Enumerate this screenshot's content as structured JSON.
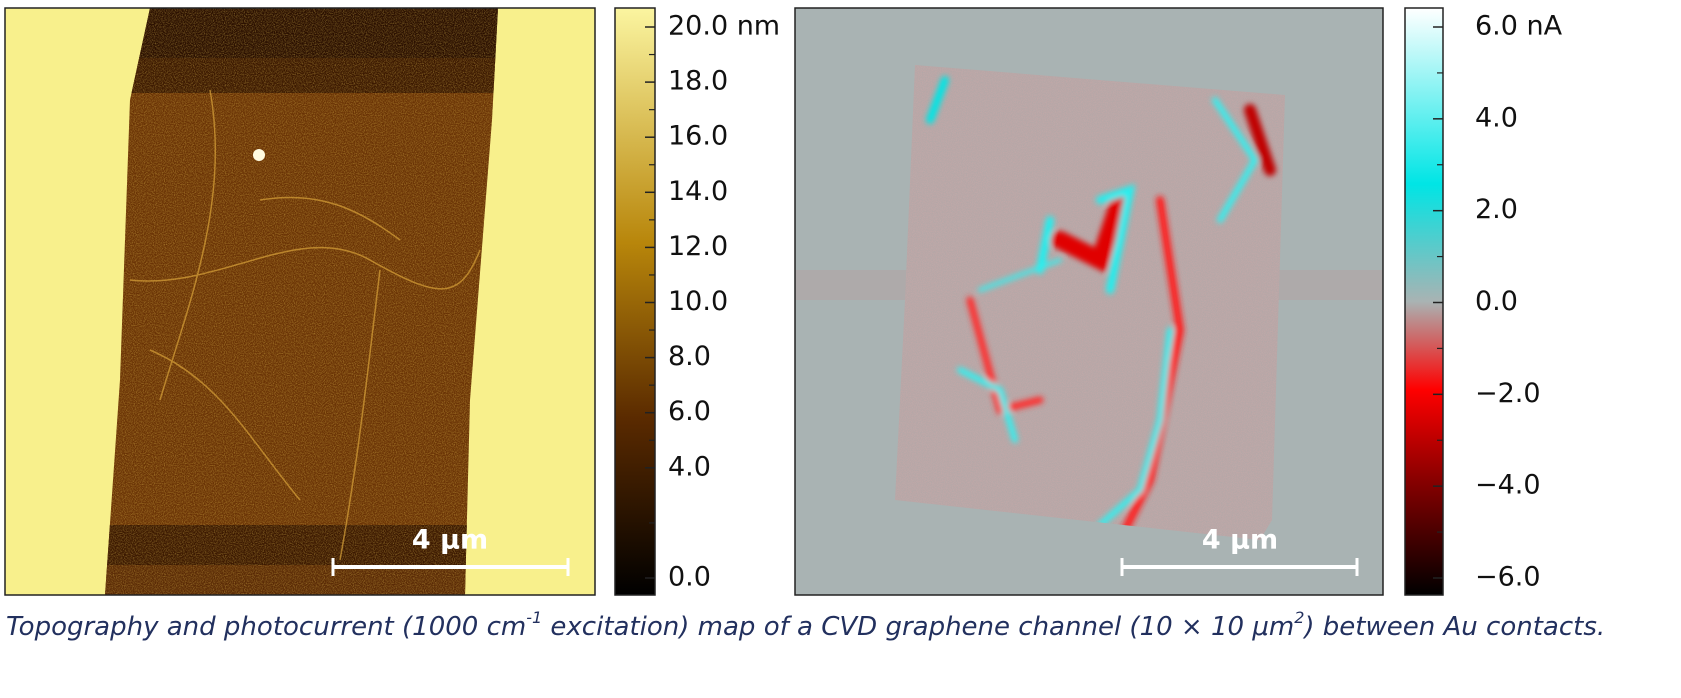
{
  "figure": {
    "panels": [
      {
        "scale_bar": "4 μm",
        "colorbar_ticks": [
          {
            "value": 20,
            "label": "20.0 nm"
          },
          {
            "value": 18,
            "label": "18.0"
          },
          {
            "value": 16,
            "label": "16.0"
          },
          {
            "value": 14,
            "label": "14.0"
          },
          {
            "value": 12,
            "label": "12.0"
          },
          {
            "value": 10,
            "label": "10.0"
          },
          {
            "value": 8,
            "label": "8.0"
          },
          {
            "value": 6,
            "label": "6.0"
          },
          {
            "value": 4,
            "label": "4.0"
          },
          {
            "value": 0,
            "label": "0.0"
          }
        ]
      },
      {
        "scale_bar": "4 μm",
        "colorbar_ticks": [
          {
            "value": 6,
            "label": "6.0 nA"
          },
          {
            "value": 4,
            "label": "4.0"
          },
          {
            "value": 2,
            "label": "2.0"
          },
          {
            "value": 0,
            "label": "0.0"
          },
          {
            "value": -2,
            "label": "−2.0"
          },
          {
            "value": -4,
            "label": "−4.0"
          },
          {
            "value": -6,
            "label": "−6.0"
          }
        ]
      }
    ],
    "caption": [
      "Topography and photocurrent (1000 cm",
      "-1",
      " excitation) map of a CVD graphene channel (10 × 10 μm",
      "2",
      ") between Au contacts."
    ]
  }
}
